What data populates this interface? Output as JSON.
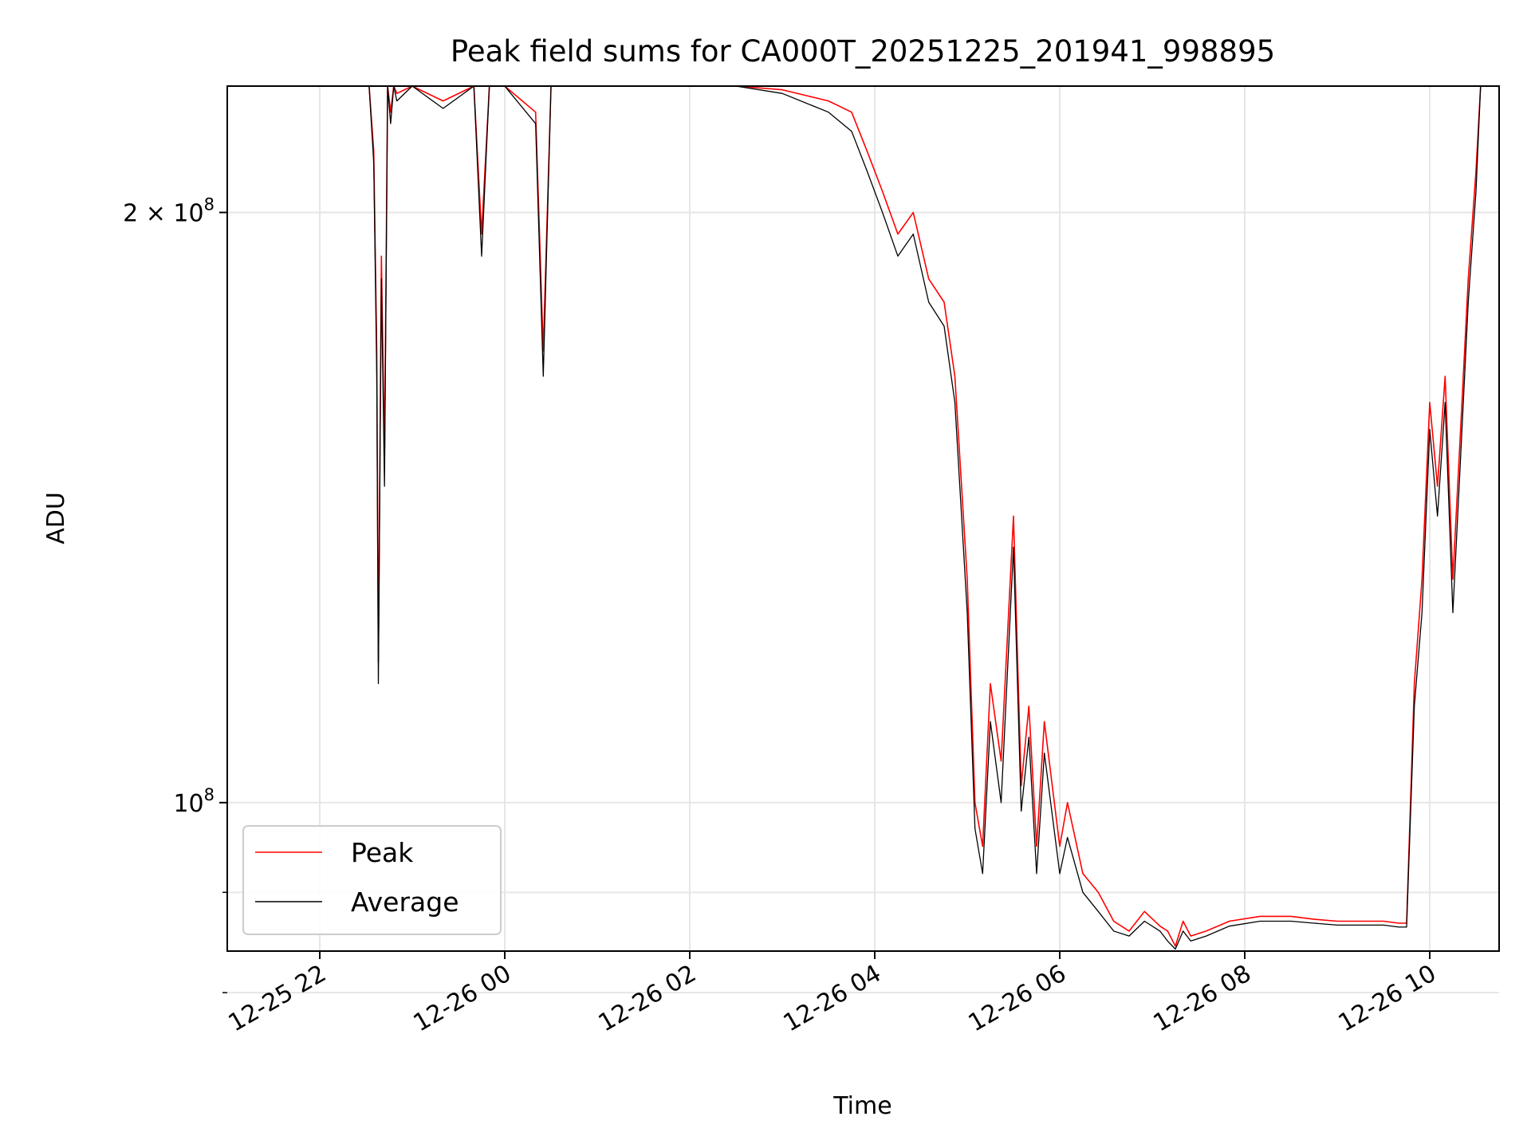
{
  "chart_data": {
    "type": "line",
    "title": "Peak field sums for CA000T_20251225_201941_998895",
    "xlabel": "Time",
    "ylabel": "ADU",
    "yscale": "log",
    "grid": true,
    "legend_position": "lower-left",
    "xlim": [
      "2025-12-25 21:00",
      "2025-12-26 10:45"
    ],
    "ylim": [
      84000000,
      232000000
    ],
    "x_ticks": [
      {
        "value": "2025-12-25 22:00",
        "label": "12-25 22"
      },
      {
        "value": "2025-12-26 00:00",
        "label": "12-26 00"
      },
      {
        "value": "2025-12-26 02:00",
        "label": "12-26 02"
      },
      {
        "value": "2025-12-26 04:00",
        "label": "12-26 04"
      },
      {
        "value": "2025-12-26 06:00",
        "label": "12-26 06"
      },
      {
        "value": "2025-12-26 08:00",
        "label": "12-26 08"
      },
      {
        "value": "2025-12-26 10:00",
        "label": "12-26 10"
      }
    ],
    "y_ticks": [
      {
        "value": 200000000,
        "label": "2 × 10",
        "exp": "8"
      },
      {
        "value": 100000000,
        "label": "10",
        "exp": "8"
      }
    ],
    "y_minor_ticks": [
      90000000,
      80000000
    ],
    "series": [
      {
        "name": "Peak",
        "color": "#ff0000",
        "x": [
          "2025-12-25 22:32",
          "2025-12-25 22:35",
          "2025-12-25 22:37",
          "2025-12-25 22:38",
          "2025-12-25 22:40",
          "2025-12-25 22:42",
          "2025-12-25 22:44",
          "2025-12-25 22:46",
          "2025-12-25 22:48",
          "2025-12-25 22:50",
          "2025-12-25 23:00",
          "2025-12-25 23:20",
          "2025-12-25 23:40",
          "2025-12-25 23:45",
          "2025-12-25 23:50",
          "2025-12-26 00:00",
          "2025-12-26 00:20",
          "2025-12-26 00:25",
          "2025-12-26 00:30",
          "2025-12-26 00:50",
          "2025-12-26 01:00",
          "2025-12-26 01:30",
          "2025-12-26 02:30",
          "2025-12-26 03:00",
          "2025-12-26 03:30",
          "2025-12-26 03:45",
          "2025-12-26 03:55",
          "2025-12-26 04:05",
          "2025-12-26 04:15",
          "2025-12-26 04:25",
          "2025-12-26 04:35",
          "2025-12-26 04:45",
          "2025-12-26 04:52",
          "2025-12-26 05:00",
          "2025-12-26 05:05",
          "2025-12-26 05:10",
          "2025-12-26 05:15",
          "2025-12-26 05:22",
          "2025-12-26 05:30",
          "2025-12-26 05:35",
          "2025-12-26 05:40",
          "2025-12-26 05:45",
          "2025-12-26 05:50",
          "2025-12-26 06:00",
          "2025-12-26 06:05",
          "2025-12-26 06:15",
          "2025-12-26 06:25",
          "2025-12-26 06:35",
          "2025-12-26 06:45",
          "2025-12-26 06:55",
          "2025-12-26 07:05",
          "2025-12-26 07:10",
          "2025-12-26 07:15",
          "2025-12-26 07:20",
          "2025-12-26 07:25",
          "2025-12-26 07:35",
          "2025-12-26 07:50",
          "2025-12-26 08:10",
          "2025-12-26 08:30",
          "2025-12-26 08:45",
          "2025-12-26 09:00",
          "2025-12-26 09:15",
          "2025-12-26 09:30",
          "2025-12-26 09:40",
          "2025-12-26 09:45",
          "2025-12-26 09:50",
          "2025-12-26 09:55",
          "2025-12-26 10:00",
          "2025-12-26 10:05",
          "2025-12-26 10:10",
          "2025-12-26 10:15",
          "2025-12-26 10:20",
          "2025-12-26 10:25",
          "2025-12-26 10:30",
          "2025-12-26 10:33"
        ],
        "y": [
          232000000,
          215000000,
          170000000,
          118000000,
          190000000,
          150000000,
          232000000,
          225000000,
          232000000,
          230000000,
          232000000,
          228000000,
          232000000,
          195000000,
          232000000,
          232000000,
          225000000,
          170000000,
          232000000,
          232000000,
          232000000,
          232000000,
          232000000,
          231000000,
          228000000,
          225000000,
          215000000,
          205000000,
          195000000,
          200000000,
          185000000,
          180000000,
          165000000,
          130000000,
          100000000,
          95000000,
          115000000,
          105000000,
          140000000,
          102000000,
          112000000,
          95000000,
          110000000,
          95000000,
          100000000,
          92000000,
          90000000,
          87000000,
          86000000,
          88000000,
          86500000,
          86000000,
          84500000,
          87000000,
          85500000,
          86000000,
          87000000,
          87500000,
          87500000,
          87200000,
          87000000,
          87000000,
          87000000,
          86800000,
          86800000,
          115000000,
          130000000,
          160000000,
          145000000,
          165000000,
          130000000,
          155000000,
          185000000,
          210000000,
          232000000
        ]
      },
      {
        "name": "Average",
        "color": "#000000",
        "x": [
          "2025-12-25 22:32",
          "2025-12-25 22:35",
          "2025-12-25 22:37",
          "2025-12-25 22:38",
          "2025-12-25 22:40",
          "2025-12-25 22:42",
          "2025-12-25 22:44",
          "2025-12-25 22:46",
          "2025-12-25 22:48",
          "2025-12-25 22:50",
          "2025-12-25 23:00",
          "2025-12-25 23:20",
          "2025-12-25 23:40",
          "2025-12-25 23:45",
          "2025-12-25 23:50",
          "2025-12-26 00:00",
          "2025-12-26 00:20",
          "2025-12-26 00:25",
          "2025-12-26 00:30",
          "2025-12-26 00:50",
          "2025-12-26 01:00",
          "2025-12-26 01:30",
          "2025-12-26 02:30",
          "2025-12-26 03:00",
          "2025-12-26 03:30",
          "2025-12-26 03:45",
          "2025-12-26 03:55",
          "2025-12-26 04:05",
          "2025-12-26 04:15",
          "2025-12-26 04:25",
          "2025-12-26 04:35",
          "2025-12-26 04:45",
          "2025-12-26 04:52",
          "2025-12-26 05:00",
          "2025-12-26 05:05",
          "2025-12-26 05:10",
          "2025-12-26 05:15",
          "2025-12-26 05:22",
          "2025-12-26 05:30",
          "2025-12-26 05:35",
          "2025-12-26 05:40",
          "2025-12-26 05:45",
          "2025-12-26 05:50",
          "2025-12-26 06:00",
          "2025-12-26 06:05",
          "2025-12-26 06:15",
          "2025-12-26 06:25",
          "2025-12-26 06:35",
          "2025-12-26 06:45",
          "2025-12-26 06:55",
          "2025-12-26 07:05",
          "2025-12-26 07:10",
          "2025-12-26 07:15",
          "2025-12-26 07:20",
          "2025-12-26 07:25",
          "2025-12-26 07:35",
          "2025-12-26 07:50",
          "2025-12-26 08:10",
          "2025-12-26 08:30",
          "2025-12-26 08:45",
          "2025-12-26 09:00",
          "2025-12-26 09:15",
          "2025-12-26 09:30",
          "2025-12-26 09:40",
          "2025-12-26 09:45",
          "2025-12-26 09:50",
          "2025-12-26 09:55",
          "2025-12-26 10:00",
          "2025-12-26 10:05",
          "2025-12-26 10:10",
          "2025-12-26 10:15",
          "2025-12-26 10:20",
          "2025-12-26 10:25",
          "2025-12-26 10:30",
          "2025-12-26 10:33"
        ],
        "y": [
          232000000,
          212000000,
          165000000,
          115000000,
          185000000,
          145000000,
          232000000,
          222000000,
          232000000,
          228000000,
          232000000,
          226000000,
          232000000,
          190000000,
          232000000,
          232000000,
          222000000,
          165000000,
          232000000,
          232000000,
          232000000,
          232000000,
          232000000,
          230000000,
          225000000,
          220000000,
          210000000,
          200000000,
          190000000,
          195000000,
          180000000,
          175000000,
          160000000,
          125000000,
          97000000,
          92000000,
          110000000,
          100000000,
          135000000,
          99000000,
          108000000,
          92000000,
          106000000,
          92000000,
          96000000,
          90000000,
          88000000,
          86000000,
          85500000,
          87000000,
          86000000,
          85000000,
          84200000,
          86000000,
          85000000,
          85500000,
          86500000,
          87000000,
          87000000,
          86800000,
          86600000,
          86600000,
          86600000,
          86400000,
          86400000,
          112000000,
          125000000,
          155000000,
          140000000,
          160000000,
          125000000,
          150000000,
          180000000,
          205000000,
          232000000
        ]
      }
    ]
  }
}
